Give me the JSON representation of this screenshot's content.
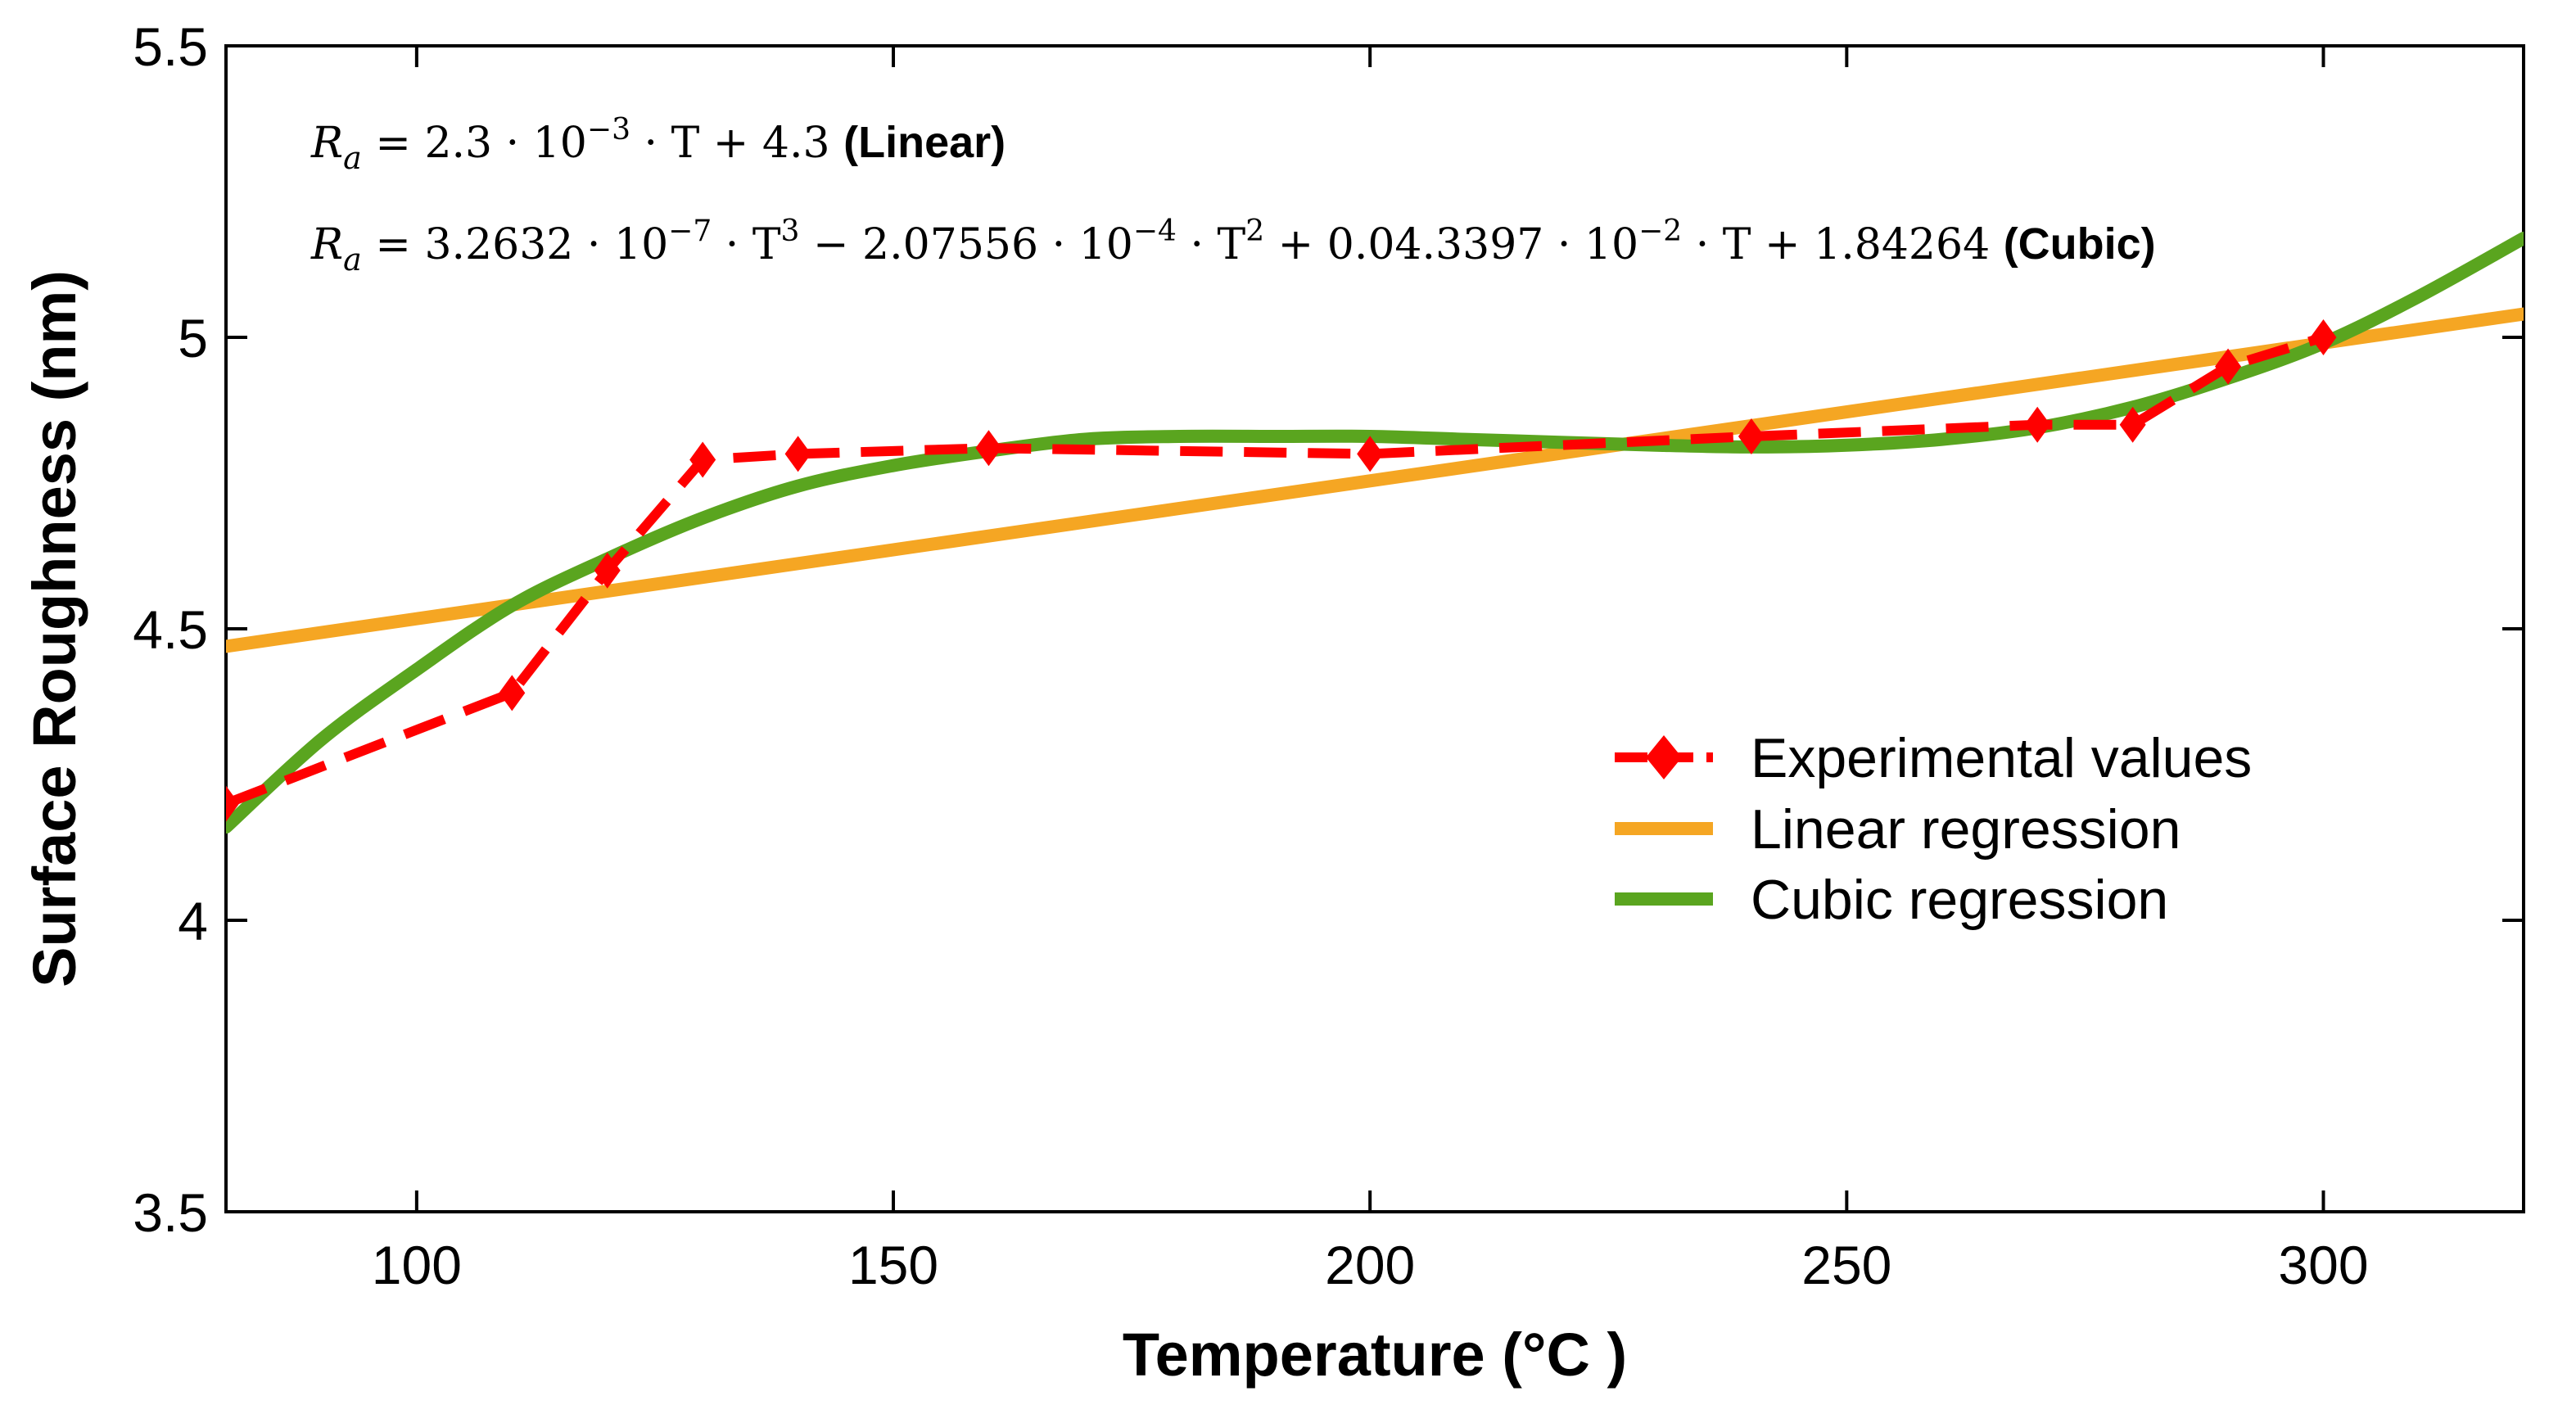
{
  "chart_data": {
    "type": "line",
    "xlabel": "Temperature (°C )",
    "ylabel": "Surface Roughness (nm)",
    "xlim": [
      80,
      321
    ],
    "ylim": [
      3.5,
      5.5
    ],
    "x_ticks": [
      100,
      150,
      200,
      250,
      300
    ],
    "y_ticks": [
      3.5,
      4,
      4.5,
      5,
      5.5
    ],
    "x_tick_labels": [
      "100",
      "150",
      "200",
      "250",
      "300"
    ],
    "y_tick_labels": [
      "3.5",
      "4",
      "4.5",
      "5",
      "5.5"
    ],
    "grid": false,
    "legend_position": "center-right",
    "colors": {
      "experimental": "#ff0000",
      "linear": "#f5a623",
      "cubic": "#5aa51f"
    },
    "series": [
      {
        "name": "Experimental values",
        "style": "dashed-diamond",
        "x": [
          80,
          110,
          120,
          130,
          140,
          160,
          200,
          240,
          270,
          280,
          290,
          300
        ],
        "y": [
          4.2,
          4.39,
          4.6,
          4.79,
          4.8,
          4.81,
          4.8,
          4.83,
          4.85,
          4.85,
          4.95,
          5.0
        ]
      },
      {
        "name": "Linear regression",
        "style": "solid",
        "x": [
          80,
          321
        ],
        "y": [
          4.47,
          5.04
        ]
      },
      {
        "name": "Cubic regression",
        "style": "solid",
        "x": [
          80,
          90,
          100,
          110,
          120,
          130,
          140,
          150,
          160,
          170,
          180,
          190,
          200,
          210,
          220,
          230,
          240,
          250,
          260,
          270,
          280,
          290,
          300,
          310,
          321
        ],
        "y": [
          4.16,
          4.31,
          4.43,
          4.54,
          4.62,
          4.69,
          4.745,
          4.78,
          4.805,
          4.825,
          4.83,
          4.83,
          4.83,
          4.825,
          4.82,
          4.815,
          4.812,
          4.815,
          4.825,
          4.845,
          4.88,
          4.93,
          4.99,
          5.07,
          5.17
        ]
      }
    ],
    "annotations": [
      {
        "id": "linear-eq",
        "formula": "R_a = 2.3 · 10^-3 · T + 4.3",
        "parts": {
          "lhs": "R",
          "sub": "a",
          "body1": " = 2.3 · 10",
          "sup1": "−3",
          "body2": " · T + 4.3 ",
          "tag": "(Linear)"
        }
      },
      {
        "id": "cubic-eq",
        "formula": "R_a = 3.2632 · 10^-7 · T^3 − 2.07556 · 10^-4 · T^2 + 0.04.3397 · 10^-2 · T + 1.84264",
        "parts": {
          "lhs": "R",
          "sub": "a",
          "b1": " = 3.2632 · 10",
          "s1": "−7",
          "b2": " · T",
          "s2": "3",
          "b3": " − 2.07556 · 10",
          "s3": "−4",
          "b4": " · T",
          "s4": "2",
          "b5": " + 0.04.3397 · 10",
          "s5": "−2",
          "b6": " · T + 1.84264  ",
          "tag": "(Cubic)"
        }
      }
    ]
  }
}
